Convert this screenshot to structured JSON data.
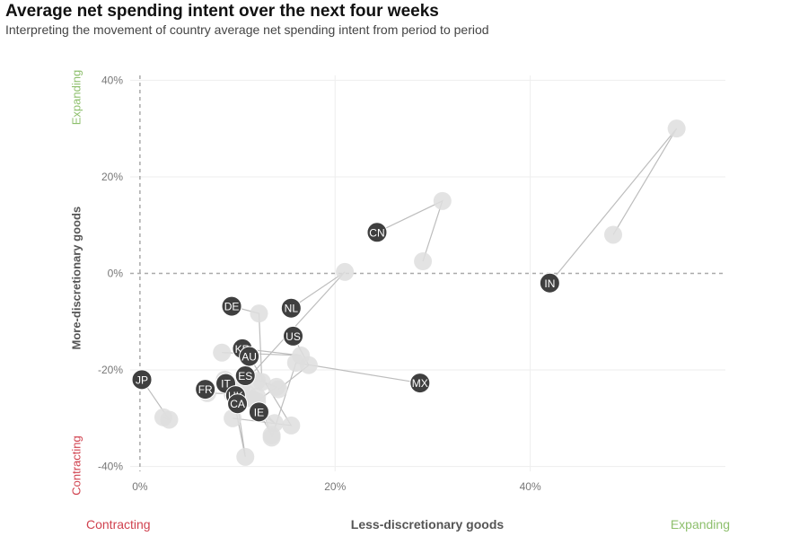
{
  "header": {
    "title": "Average net spending intent over the next four weeks",
    "subtitle": "Interpreting the movement of country average net spending intent from period to period"
  },
  "axes": {
    "y_title": "More-discretionary goods",
    "x_title": "Less-discretionary goods",
    "y_top_label": "Expanding",
    "y_bottom_label": "Contracting",
    "x_left_label": "Contracting",
    "x_right_label": "Expanding"
  },
  "colors": {
    "current_point": "#3f3f3f",
    "previous_point": "#dedede",
    "expanding": "#8dbf6c",
    "contracting": "#d0424f",
    "connector": "#bdbdbd"
  },
  "chart_data": {
    "type": "scatter",
    "xlim": [
      -1,
      60
    ],
    "ylim": [
      -41,
      41
    ],
    "x_ticks": [
      {
        "v": 0,
        "label": "0%"
      },
      {
        "v": 20,
        "label": "20%"
      },
      {
        "v": 40,
        "label": "40%"
      }
    ],
    "y_ticks": [
      {
        "v": 40,
        "label": "40%"
      },
      {
        "v": 20,
        "label": "20%"
      },
      {
        "v": 0,
        "label": "0%"
      },
      {
        "v": -20,
        "label": "-20%"
      },
      {
        "v": -40,
        "label": "-40%"
      }
    ],
    "grid": true,
    "countries": [
      {
        "code": "IN",
        "current": [
          42.0,
          -2.0
        ],
        "previous": [
          [
            55.0,
            30.0
          ],
          [
            48.5,
            8.0
          ]
        ]
      },
      {
        "code": "CN",
        "current": [
          24.3,
          8.5
        ],
        "previous": [
          [
            31.0,
            15.0
          ],
          [
            29.0,
            2.5
          ]
        ]
      },
      {
        "code": "MX",
        "current": [
          28.7,
          -22.7
        ],
        "previous": [
          [
            16.0,
            -18.5
          ],
          [
            13.5,
            -34.0
          ]
        ]
      },
      {
        "code": "NL",
        "current": [
          15.5,
          -7.2
        ],
        "previous": [
          [
            21.0,
            0.3
          ],
          [
            10.5,
            -23.0
          ]
        ]
      },
      {
        "code": "DE",
        "current": [
          9.4,
          -6.8
        ],
        "previous": [
          [
            12.2,
            -8.3
          ],
          [
            12.5,
            -22.5
          ]
        ]
      },
      {
        "code": "US",
        "current": [
          15.7,
          -13.0
        ],
        "previous": [
          [
            17.3,
            -19.0
          ],
          [
            14.2,
            -24.0
          ]
        ]
      },
      {
        "code": "KR",
        "current": [
          10.5,
          -15.6
        ],
        "previous": [
          [
            16.5,
            -17.0
          ],
          [
            8.4,
            -16.4
          ]
        ]
      },
      {
        "code": "AU",
        "current": [
          11.2,
          -17.2
        ],
        "previous": [
          [
            15.5,
            -31.5
          ],
          [
            9.5,
            -30.0
          ]
        ]
      },
      {
        "code": "ES",
        "current": [
          10.8,
          -21.2
        ],
        "previous": [
          [
            14.0,
            -23.5
          ],
          [
            12.0,
            -26.5
          ]
        ]
      },
      {
        "code": "IT",
        "current": [
          8.8,
          -22.8
        ],
        "previous": [
          [
            8.7,
            -22.0
          ],
          [
            12.0,
            -22.3
          ]
        ]
      },
      {
        "code": "FR",
        "current": [
          6.7,
          -24.0
        ],
        "previous": [
          [
            6.9,
            -24.8
          ],
          [
            11.0,
            -25.0
          ]
        ]
      },
      {
        "code": "UK",
        "current": [
          9.8,
          -25.3
        ],
        "previous": [
          [
            13.8,
            -31.0
          ],
          [
            11.5,
            -26.0
          ]
        ]
      },
      {
        "code": "CA",
        "current": [
          10.0,
          -27.0
        ],
        "previous": [
          [
            10.8,
            -38.0
          ],
          [
            9.5,
            -25.0
          ]
        ]
      },
      {
        "code": "IE",
        "current": [
          12.2,
          -28.7
        ],
        "previous": [
          [
            13.5,
            -33.5
          ],
          [
            12.0,
            -25.5
          ]
        ]
      },
      {
        "code": "JP",
        "current": [
          0.2,
          -22.0
        ],
        "previous": [
          [
            3.0,
            -30.3
          ],
          [
            2.4,
            -29.8
          ]
        ]
      }
    ]
  }
}
